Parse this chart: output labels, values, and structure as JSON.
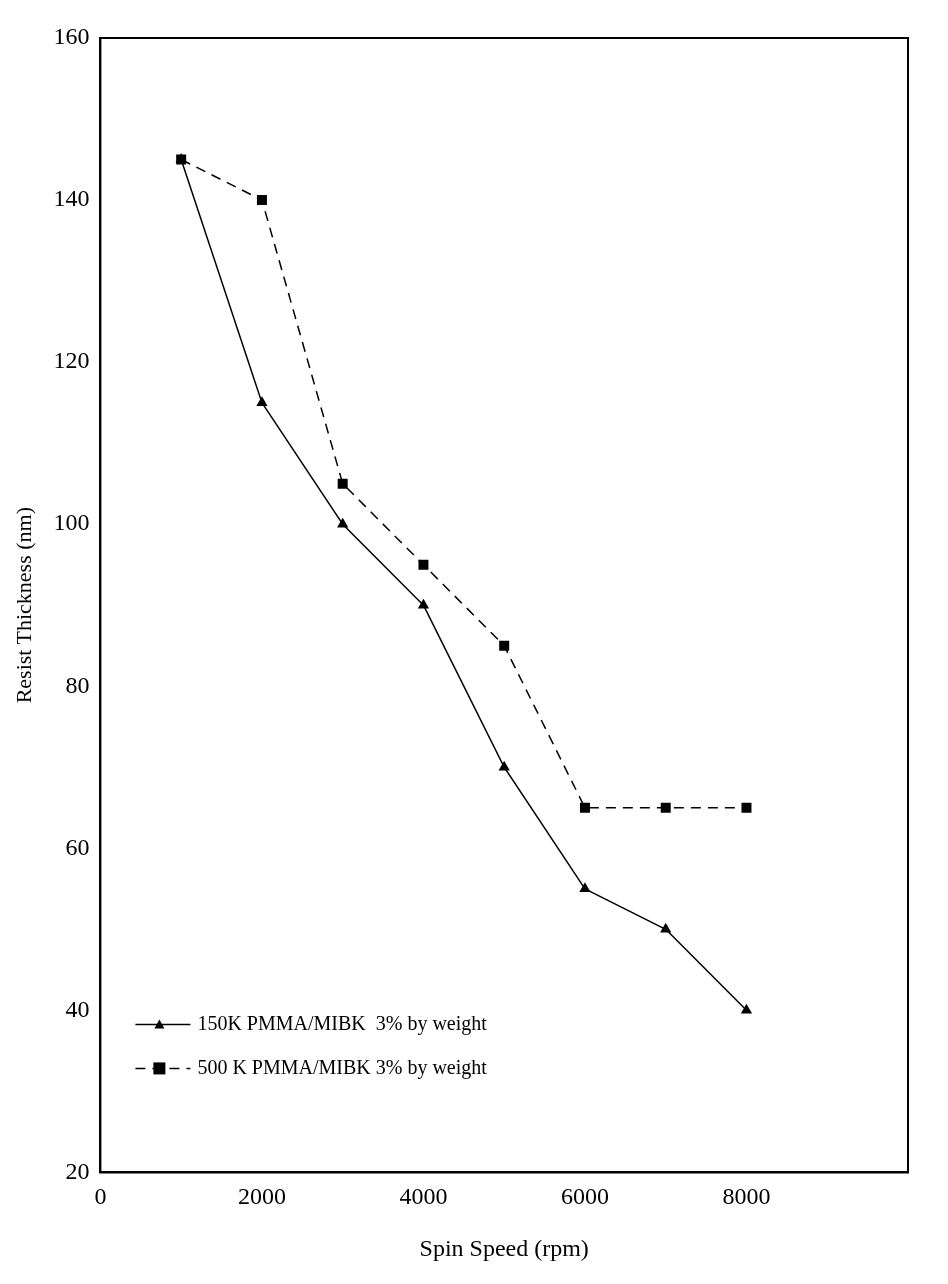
{
  "chart_data": {
    "type": "line",
    "xlabel": "Spin Speed (rpm)",
    "ylabel": "Resist Thickness (nm)",
    "x": [
      1000,
      2000,
      3000,
      4000,
      5000,
      6000,
      7000,
      8000
    ],
    "series": [
      {
        "name": "150K PMMA/MIBK  3% by weight",
        "color": "#000000",
        "marker": "triangle",
        "line_style": "solid",
        "values": [
          145,
          115,
          100,
          90,
          70,
          55,
          50,
          40
        ]
      },
      {
        "name": "500 K PMMA/MIBK 3% by weight",
        "color": "#000000",
        "marker": "square",
        "line_style": "dashed",
        "values": [
          145,
          140,
          105,
          95,
          85,
          65,
          65,
          65
        ]
      }
    ],
    "xlim": [
      0,
      10000
    ],
    "xticks": [
      0,
      2000,
      4000,
      6000,
      8000
    ],
    "ylim": [
      20,
      160
    ],
    "yticks": [
      20,
      40,
      60,
      80,
      100,
      120,
      140,
      160
    ],
    "grid": false,
    "legend": "bottom left"
  }
}
